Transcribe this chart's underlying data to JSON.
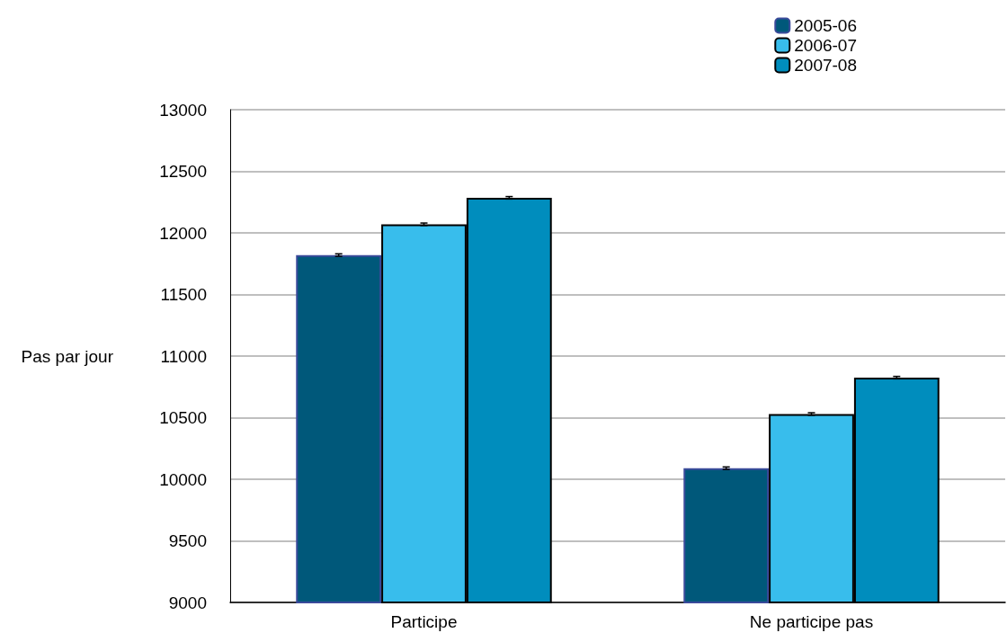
{
  "chart_data": {
    "type": "bar",
    "ylabel": "Pas par jour",
    "categories": [
      "Participe",
      "Ne participe pas"
    ],
    "series": [
      {
        "name": "2005-06",
        "color": "#00587a",
        "values": [
          11820,
          10090
        ],
        "errors": [
          10,
          10
        ]
      },
      {
        "name": "2006-07",
        "color": "#38bdec",
        "values": [
          12070,
          10530
        ],
        "errors": [
          10,
          10
        ]
      },
      {
        "name": "2007-08",
        "color": "#008dbd",
        "values": [
          12285,
          10825
        ],
        "errors": [
          10,
          10
        ]
      }
    ],
    "ylim": [
      9000,
      13000
    ],
    "yticks": [
      9000,
      9500,
      10000,
      10500,
      11000,
      11500,
      12000,
      12500,
      13000
    ],
    "grid": "y",
    "legend": "top right"
  }
}
